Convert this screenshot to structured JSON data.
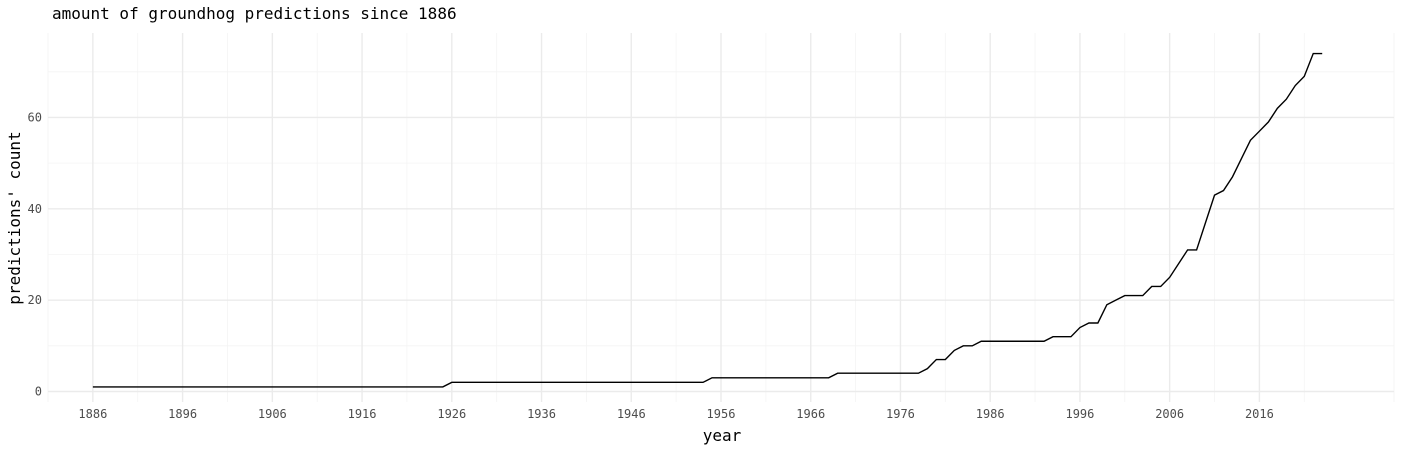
{
  "chart_data": {
    "type": "line",
    "title": "amount of groundhog predictions since 1886",
    "xlabel": "year",
    "ylabel": "predictions' count",
    "xlim": [
      1881,
      1031
    ],
    "ylim": [
      -2.3,
      78.5
    ],
    "x_ticks": [
      1886,
      1896,
      1906,
      1916,
      1926,
      1936,
      1946,
      1956,
      1966,
      1976,
      1986,
      1996,
      2006,
      2016
    ],
    "y_ticks": [
      0,
      20,
      40,
      60
    ],
    "grid": true,
    "series": [
      {
        "points": [
          [
            1886,
            1
          ],
          [
            1925,
            1
          ],
          [
            1926,
            2
          ],
          [
            1954,
            2
          ],
          [
            1955,
            3
          ],
          [
            1968,
            3
          ],
          [
            1969,
            4
          ],
          [
            1978,
            4
          ],
          [
            1979,
            5
          ],
          [
            1980,
            7
          ],
          [
            1981,
            7
          ],
          [
            1982,
            9
          ],
          [
            1983,
            10
          ],
          [
            1984,
            10
          ],
          [
            1985,
            11
          ],
          [
            1992,
            11
          ],
          [
            1993,
            12
          ],
          [
            1995,
            12
          ],
          [
            1996,
            14
          ],
          [
            1997,
            15
          ],
          [
            1998,
            15
          ],
          [
            1999,
            19
          ],
          [
            2000,
            20
          ],
          [
            2001,
            21
          ],
          [
            2003,
            21
          ],
          [
            2004,
            23
          ],
          [
            2005,
            23
          ],
          [
            2006,
            25
          ],
          [
            2007,
            28
          ],
          [
            2008,
            31
          ],
          [
            2009,
            31
          ],
          [
            2010,
            37
          ],
          [
            2011,
            43
          ],
          [
            2012,
            44
          ],
          [
            2013,
            47
          ],
          [
            2014,
            51
          ],
          [
            2015,
            55
          ],
          [
            2016,
            57
          ],
          [
            2017,
            59
          ],
          [
            2018,
            62
          ],
          [
            2019,
            64
          ],
          [
            2020,
            67
          ],
          [
            2021,
            69
          ],
          [
            2022,
            74
          ],
          [
            2023,
            74
          ]
        ]
      }
    ]
  }
}
